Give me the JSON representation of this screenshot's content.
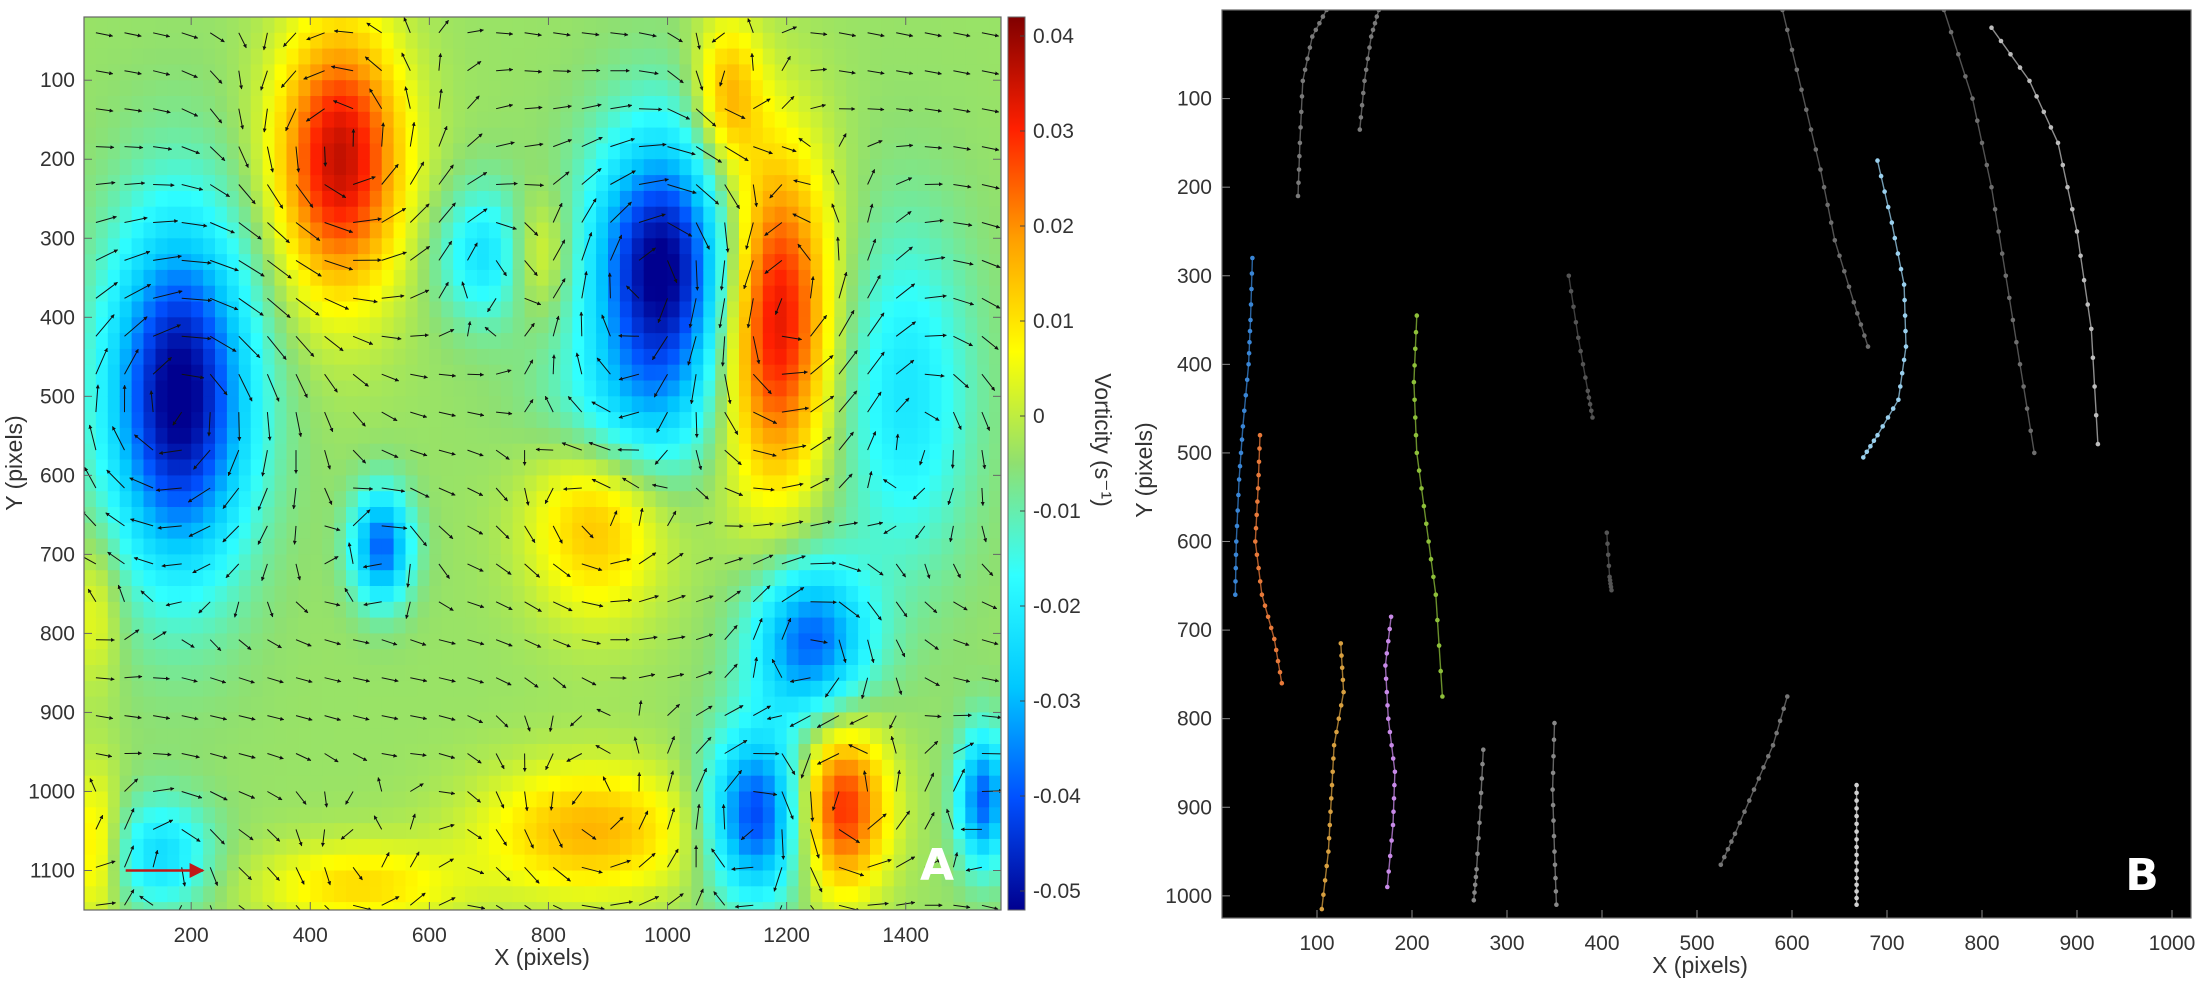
{
  "chart_data": [
    {
      "panel_label": "A",
      "type": "heatmap",
      "xlabel": "X (pixels)",
      "ylabel": "Y (pixels)",
      "colorbar_label": "Vorticity (s⁻¹)",
      "xlim": [
        20,
        1560
      ],
      "ylim": [
        1150,
        20
      ],
      "x_ticks": [
        200,
        400,
        600,
        800,
        1000,
        1200,
        1400
      ],
      "y_ticks": [
        100,
        200,
        300,
        400,
        500,
        600,
        700,
        800,
        900,
        1000,
        1100
      ],
      "colorbar_range": [
        -0.052,
        0.042
      ],
      "colorbar_ticks": [
        0.04,
        0.03,
        0.02,
        0.01,
        0,
        -0.01,
        -0.02,
        -0.03,
        -0.04,
        -0.05
      ],
      "colorbar_tick_labels": [
        "0.04",
        "0.03",
        "0.02",
        "0.01",
        "0",
        "-0.01",
        "-0.02",
        "-0.03",
        "-0.04",
        "-0.05"
      ],
      "colormap": [
        "#00008f",
        "#0050ff",
        "#00c8ff",
        "#30ffff",
        "#8fe070",
        "#ffff00",
        "#ffa000",
        "#ff2000",
        "#800000"
      ],
      "vortices": [
        {
          "x": 180,
          "y": 500,
          "value": -0.05,
          "sx": 85,
          "sy": 155
        },
        {
          "x": 450,
          "y": 200,
          "value": 0.04,
          "sx": 75,
          "sy": 120
        },
        {
          "x": 990,
          "y": 340,
          "value": -0.05,
          "sx": 85,
          "sy": 120
        },
        {
          "x": 1180,
          "y": 400,
          "value": 0.04,
          "sx": 65,
          "sy": 150
        },
        {
          "x": 1240,
          "y": 810,
          "value": -0.035,
          "sx": 70,
          "sy": 70
        },
        {
          "x": 1290,
          "y": 1020,
          "value": 0.035,
          "sx": 55,
          "sy": 75
        },
        {
          "x": 1150,
          "y": 1030,
          "value": -0.04,
          "sx": 60,
          "sy": 75
        },
        {
          "x": 520,
          "y": 690,
          "value": -0.035,
          "sx": 35,
          "sy": 50
        },
        {
          "x": 880,
          "y": 650,
          "value": 0.02,
          "sx": 80,
          "sy": 90
        },
        {
          "x": 870,
          "y": 1050,
          "value": 0.02,
          "sx": 130,
          "sy": 60
        },
        {
          "x": 1530,
          "y": 1010,
          "value": -0.035,
          "sx": 30,
          "sy": 60
        },
        {
          "x": 700,
          "y": 320,
          "value": -0.02,
          "sx": 60,
          "sy": 60
        },
        {
          "x": 780,
          "y": 320,
          "value": 0.015,
          "sx": 40,
          "sy": 55
        },
        {
          "x": 480,
          "y": 1120,
          "value": 0.015,
          "sx": 120,
          "sy": 40
        },
        {
          "x": 1100,
          "y": 120,
          "value": 0.02,
          "sx": 40,
          "sy": 70
        },
        {
          "x": 150,
          "y": 1080,
          "value": -0.02,
          "sx": 60,
          "sy": 50
        },
        {
          "x": 920,
          "y": 530,
          "value": -0.015,
          "sx": 100,
          "sy": 70
        },
        {
          "x": 1400,
          "y": 500,
          "value": -0.018,
          "sx": 80,
          "sy": 150
        },
        {
          "x": 40,
          "y": 770,
          "value": 0.01,
          "sx": 30,
          "sy": 70
        },
        {
          "x": 40,
          "y": 1070,
          "value": 0.015,
          "sx": 30,
          "sy": 70
        }
      ],
      "reference_vector": {
        "x": 90,
        "y": 1100,
        "dx": 130,
        "color": "#c01818"
      },
      "grid": false,
      "legend": "none"
    },
    {
      "panel_label": "B",
      "type": "scatter",
      "xlabel": "X (pixels)",
      "ylabel": "Y (pixels)",
      "xlim": [
        0,
        1020
      ],
      "ylim": [
        1025,
        0
      ],
      "x_ticks": [
        100,
        200,
        300,
        400,
        500,
        600,
        700,
        800,
        900,
        1000
      ],
      "y_ticks": [
        100,
        200,
        300,
        400,
        500,
        600,
        700,
        800,
        900,
        1000
      ],
      "background": "#000000",
      "grid": false,
      "legend": "none",
      "series": [
        {
          "color": "#3a86d6",
          "points": [
            [
              32,
              280
            ],
            [
              30,
              350
            ],
            [
              28,
              400
            ],
            [
              22,
              470
            ],
            [
              18,
              530
            ],
            [
              15,
              600
            ],
            [
              14,
              660
            ]
          ]
        },
        {
          "color": "#e87a3a",
          "points": [
            [
              40,
              480
            ],
            [
              38,
              540
            ],
            [
              35,
              600
            ],
            [
              42,
              660
            ],
            [
              55,
              710
            ],
            [
              63,
              760
            ]
          ]
        },
        {
          "color": "#d8a040",
          "points": [
            [
              125,
              715
            ],
            [
              128,
              770
            ],
            [
              118,
              830
            ],
            [
              115,
              890
            ],
            [
              112,
              950
            ],
            [
              105,
              1015
            ]
          ]
        },
        {
          "color": "#c88ae8",
          "points": [
            [
              178,
              685
            ],
            [
              172,
              740
            ],
            [
              175,
              800
            ],
            [
              182,
              860
            ],
            [
              180,
              920
            ],
            [
              174,
              990
            ]
          ]
        },
        {
          "color": "#8ec03a",
          "points": [
            [
              205,
              345
            ],
            [
              202,
              420
            ],
            [
              205,
              500
            ],
            [
              215,
              580
            ],
            [
              225,
              660
            ],
            [
              232,
              775
            ]
          ]
        },
        {
          "color": "#9ad0ee",
          "points": [
            [
              690,
              170
            ],
            [
              705,
              240
            ],
            [
              718,
              310
            ],
            [
              720,
              380
            ],
            [
              712,
              440
            ],
            [
              690,
              480
            ],
            [
              675,
              505
            ]
          ]
        },
        {
          "color": "#7a7a7a",
          "points": [
            [
              80,
              210
            ],
            [
              82,
              150
            ],
            [
              85,
              80
            ],
            [
              95,
              30
            ],
            [
              110,
              0
            ]
          ]
        },
        {
          "color": "#7a7a7a",
          "points": [
            [
              145,
              135
            ],
            [
              150,
              80
            ],
            [
              157,
              30
            ],
            [
              165,
              0
            ]
          ]
        },
        {
          "color": "#6e6e6e",
          "points": [
            [
              590,
              0
            ],
            [
              610,
              90
            ],
            [
              630,
              180
            ],
            [
              645,
              260
            ],
            [
              665,
              330
            ],
            [
              680,
              380
            ]
          ]
        },
        {
          "color": "#6e6e6e",
          "points": [
            [
              760,
              0
            ],
            [
              790,
              100
            ],
            [
              810,
              200
            ],
            [
              825,
              300
            ],
            [
              840,
              400
            ],
            [
              855,
              500
            ]
          ]
        },
        {
          "color": "#bcbcbc",
          "points": [
            [
              810,
              20
            ],
            [
              850,
              80
            ],
            [
              880,
              150
            ],
            [
              900,
              250
            ],
            [
              915,
              360
            ],
            [
              922,
              490
            ]
          ]
        },
        {
          "color": "#555555",
          "points": [
            [
              365,
              300
            ],
            [
              375,
              370
            ],
            [
              385,
              430
            ],
            [
              390,
              460
            ]
          ]
        },
        {
          "color": "#555555",
          "points": [
            [
              405,
              590
            ],
            [
              408,
              640
            ],
            [
              410,
              655
            ]
          ]
        },
        {
          "color": "#888888",
          "points": [
            [
              275,
              835
            ],
            [
              272,
              900
            ],
            [
              268,
              970
            ],
            [
              265,
              1005
            ]
          ]
        },
        {
          "color": "#888888",
          "points": [
            [
              350,
              805
            ],
            [
              348,
              880
            ],
            [
              350,
              950
            ],
            [
              352,
              1010
            ]
          ]
        },
        {
          "color": "#777777",
          "points": [
            [
              595,
              775
            ],
            [
              580,
              830
            ],
            [
              560,
              880
            ],
            [
              540,
              930
            ],
            [
              525,
              965
            ]
          ]
        },
        {
          "color": "#d0d0d0",
          "points": [
            [
              668,
              875
            ],
            [
              668,
              910
            ],
            [
              668,
              945
            ],
            [
              668,
              980
            ],
            [
              668,
              1010
            ]
          ]
        }
      ]
    }
  ]
}
